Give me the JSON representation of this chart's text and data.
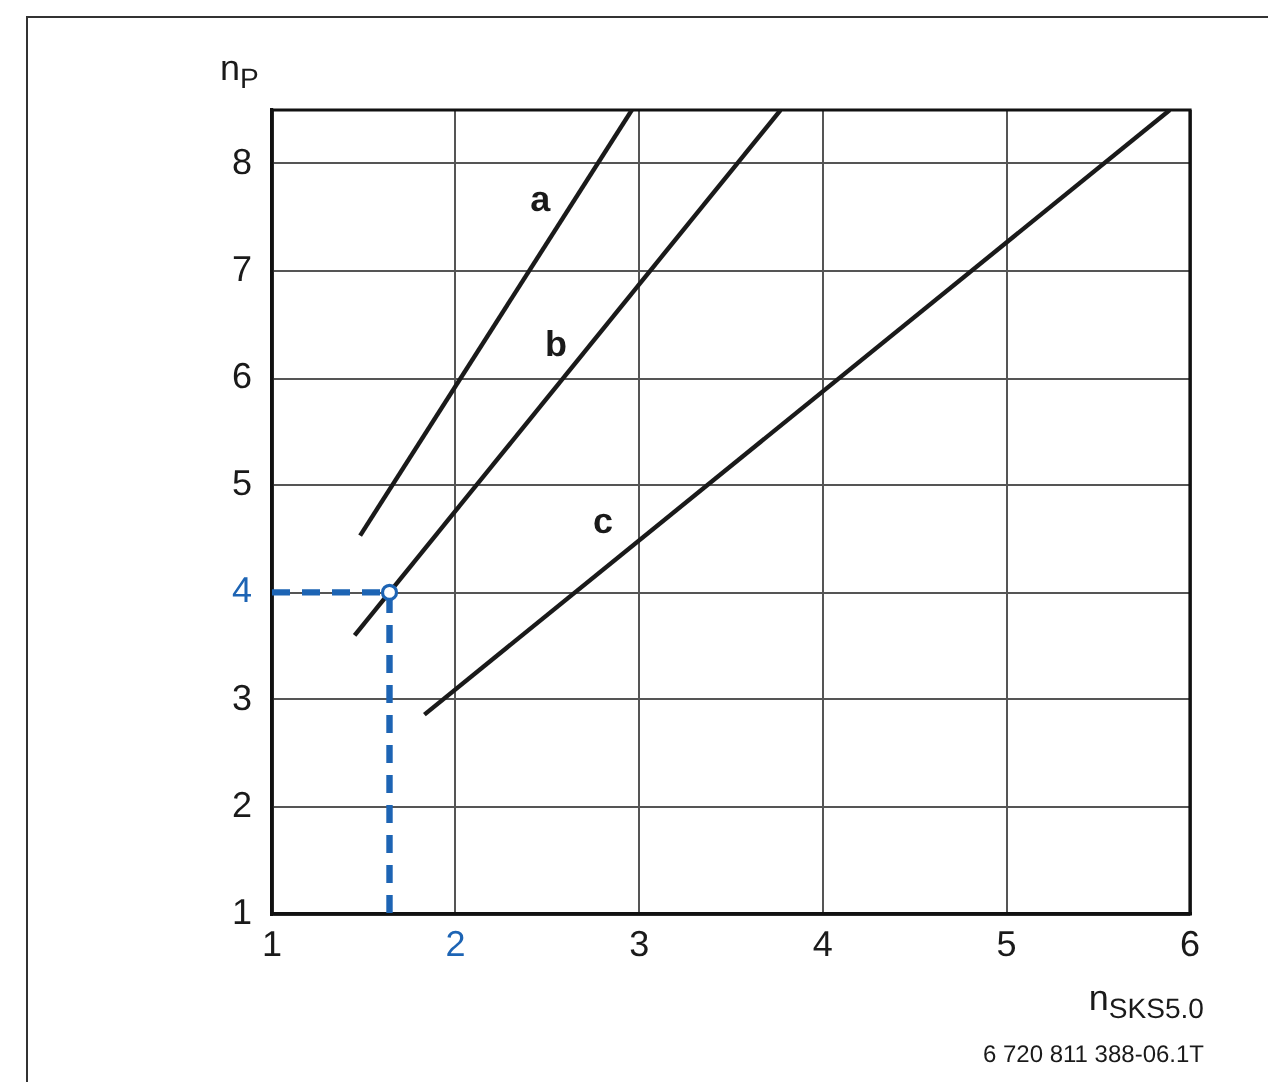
{
  "chart_data": {
    "type": "line",
    "xlabel": "n$_{SKS5.0}$",
    "ylabel": "n$_{P}$",
    "annotations": [
      "6 720 811 388-06.1T"
    ],
    "xlim": [
      1,
      6
    ],
    "ylim": [
      1,
      8.5
    ],
    "xticks": [
      1,
      2,
      3,
      4,
      5,
      6
    ],
    "yticks": [
      1,
      2,
      3,
      4,
      5,
      6,
      7,
      8
    ],
    "grid": true,
    "marker": "none",
    "line_style": "solid",
    "series": [
      {
        "name": "a",
        "color": "#1a1a1a",
        "x": [
          1.48,
          2.96
        ],
        "values": [
          4.53,
          8.5
        ]
      },
      {
        "name": "b",
        "color": "#1a1a1a",
        "x": [
          1.45,
          3.77
        ],
        "values": [
          3.6,
          8.5
        ]
      },
      {
        "name": "c",
        "color": "#1a1a1a",
        "x": [
          1.83,
          5.89
        ],
        "values": [
          2.86,
          8.5
        ]
      },
      {
        "type": "line",
        "color": "#1d64b4",
        "x": [
          1,
          1.64,
          1.64
        ],
        "values": [
          4,
          4,
          1
        ],
        "line_style": "dashed"
      },
      {
        "type": "scatter",
        "color": "#1d64b4",
        "x": [
          1.64
        ],
        "values": [
          4
        ],
        "marker": "circle"
      }
    ]
  }
}
